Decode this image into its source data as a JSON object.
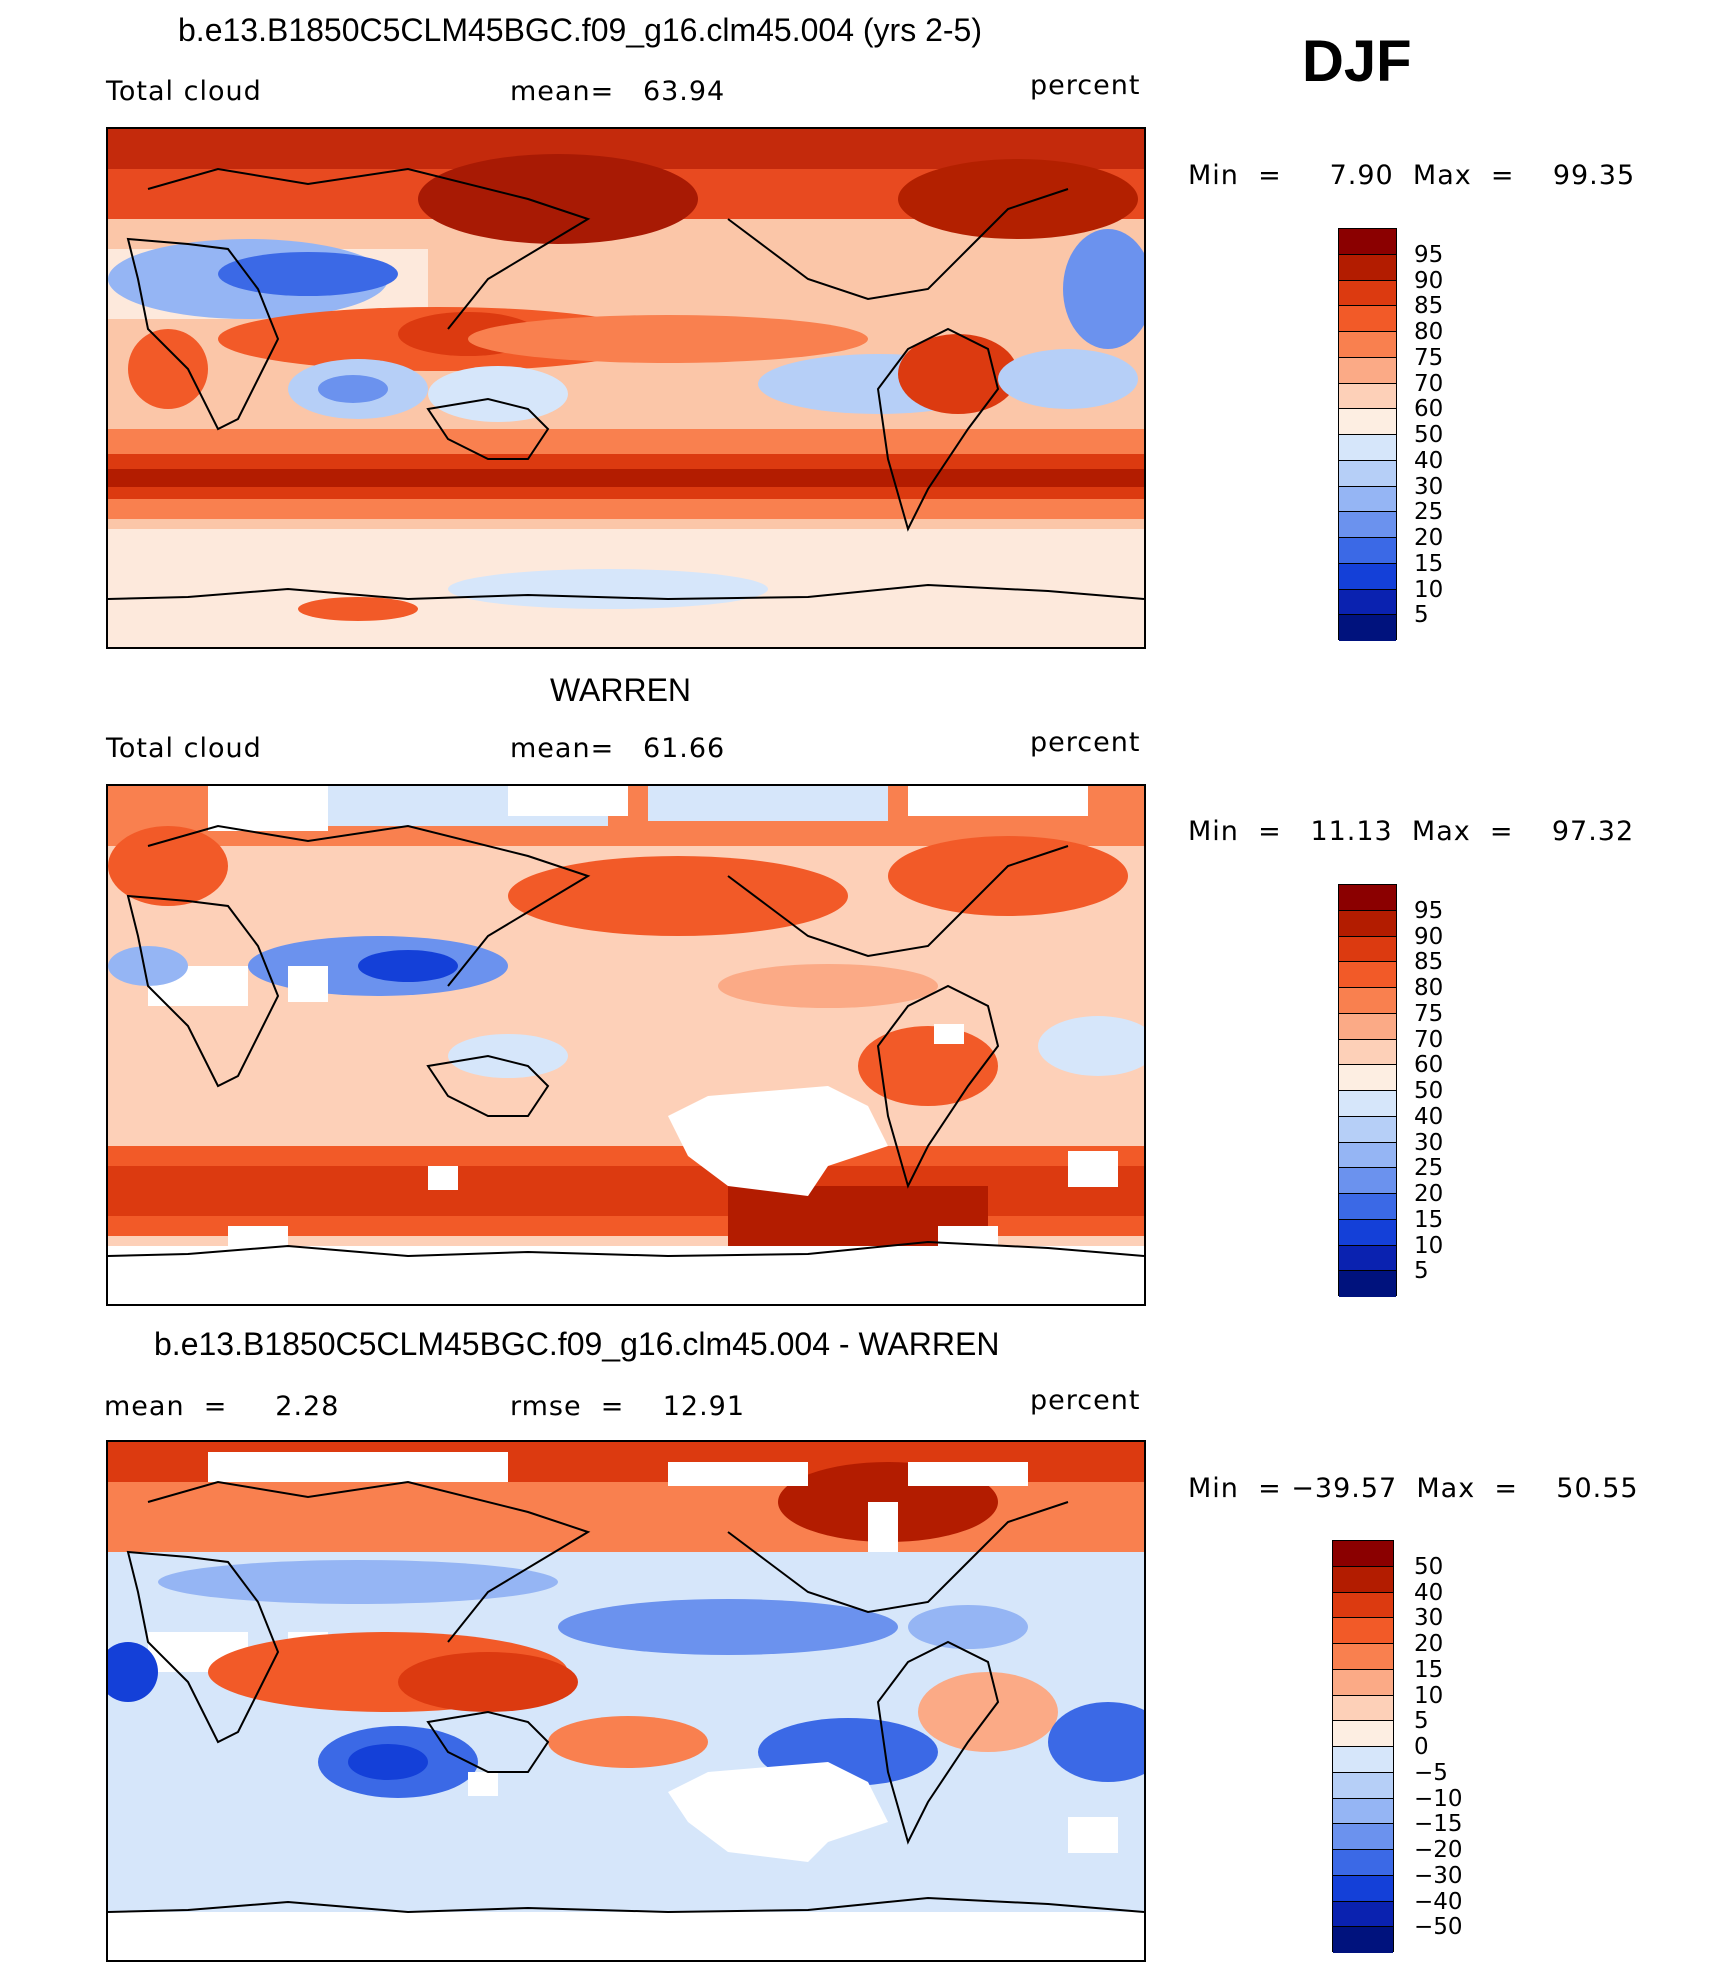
{
  "season": "DJF",
  "panels": [
    {
      "title": "b.e13.B1850C5CLM45BGC.f09_g16.clm45.004 (yrs 2-5)",
      "left_label": "Total cloud",
      "center_label": "mean=   63.94",
      "right_label": "percent",
      "minmax": "Min  =     7.90  Max  =    99.35",
      "colorbar_labels": [
        "95",
        "90",
        "85",
        "80",
        "75",
        "70",
        "60",
        "50",
        "40",
        "30",
        "25",
        "20",
        "15",
        "10",
        "5"
      ]
    },
    {
      "title": "WARREN",
      "left_label": "Total cloud",
      "center_label": "mean=   61.66",
      "right_label": "percent",
      "minmax": "Min  =   11.13  Max  =    97.32",
      "colorbar_labels": [
        "95",
        "90",
        "85",
        "80",
        "75",
        "70",
        "60",
        "50",
        "40",
        "30",
        "25",
        "20",
        "15",
        "10",
        "5"
      ]
    },
    {
      "title": "b.e13.B1850C5CLM45BGC.f09_g16.clm45.004 - WARREN",
      "left_label": "mean  =     2.28",
      "center_label": "rmse  =    12.91",
      "right_label": "percent",
      "minmax": "Min  = −39.57  Max  =    50.55",
      "colorbar_labels": [
        "50",
        "40",
        "30",
        "20",
        "15",
        "10",
        "5",
        "0",
        "−5",
        "−10",
        "−15",
        "−20",
        "−30",
        "−40",
        "−50"
      ]
    }
  ],
  "colorbar_colors": [
    "#8b0000",
    "#b31c00",
    "#dc3a10",
    "#f25a28",
    "#f9804f",
    "#fbaa86",
    "#fdd0b8",
    "#fdeee2",
    "#d6e6fa",
    "#b6cff7",
    "#95b5f4",
    "#6b92ee",
    "#3b69e6",
    "#1440d8",
    "#0a22b0",
    "#00127d"
  ]
}
